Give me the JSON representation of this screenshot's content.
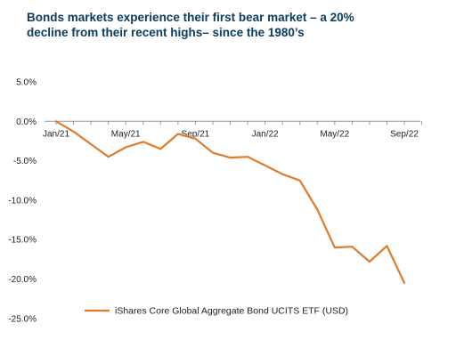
{
  "title_lines": [
    "Bonds markets experience their first bear market – a 20%",
    "decline from their recent highs– since the 1980’s"
  ],
  "colors": {
    "title": "#0a3d62",
    "series": "#e07b2a",
    "axis": "#999999",
    "text": "#222222"
  },
  "chart_data": {
    "type": "line",
    "title": "Bonds markets experience their first bear market – a 20% decline from their recent highs– since the 1980’s",
    "xlabel": "",
    "ylabel": "",
    "x_ticks": [
      "Jan/21",
      "May/21",
      "Sep/21",
      "Jan/22",
      "May/22",
      "Sep/22"
    ],
    "y_ticks": [
      "5.0%",
      "0.0%",
      "-5.0%",
      "-10.0%",
      "-15.0%",
      "-20.0%",
      "-25.0%"
    ],
    "ylim": [
      -25,
      5
    ],
    "grid": false,
    "legend_position": "bottom-center",
    "series": [
      {
        "name": "iShares Core Global Aggregate Bond UCITS ETF (USD)",
        "x": [
          "Jan/21",
          "Feb/21",
          "Mar/21",
          "Apr/21",
          "May/21",
          "Jun/21",
          "Jul/21",
          "Aug/21",
          "Sep/21",
          "Oct/21",
          "Nov/21",
          "Dec/21",
          "Jan/22",
          "Feb/22",
          "Mar/22",
          "Apr/22",
          "May/22",
          "Jun/22",
          "Jul/22",
          "Aug/22",
          "Sep/22",
          "Oct/22"
        ],
        "values": [
          0.0,
          -1.3,
          -2.9,
          -4.5,
          -3.3,
          -2.6,
          -3.5,
          -1.6,
          -2.2,
          -4.0,
          -4.6,
          -4.5,
          -5.6,
          -6.7,
          -7.5,
          -11.2,
          -16.0,
          -15.9,
          -17.8,
          -15.8,
          -20.5,
          null
        ]
      }
    ]
  }
}
